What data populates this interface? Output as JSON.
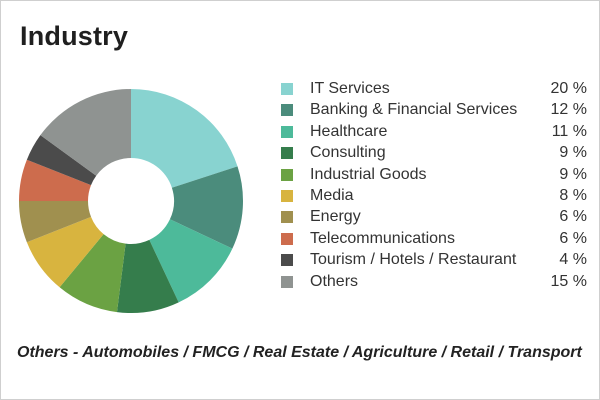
{
  "chart_data": {
    "type": "pie",
    "title": "Industry",
    "categories": [
      "IT Services",
      "Banking & Financial Services",
      "Healthcare",
      "Consulting",
      "Industrial Goods",
      "Media",
      "Energy",
      "Telecommunications",
      "Tourism / Hotels / Restaurant",
      "Others"
    ],
    "values": [
      20,
      12,
      11,
      9,
      9,
      8,
      6,
      6,
      4,
      15
    ],
    "value_labels": [
      "20 %",
      "12 %",
      "11 %",
      "9 %",
      "9 %",
      "8 %",
      "6 %",
      "6 %",
      "4 %",
      "15 %"
    ],
    "colors": [
      "#88d3d0",
      "#4b8c7c",
      "#4dba9a",
      "#357d4c",
      "#6ba243",
      "#d8b43f",
      "#a0904f",
      "#cd6c4d",
      "#4b4b4b",
      "#8f9391"
    ],
    "legend_position": "right",
    "donut": true
  },
  "footnote": "Others - Automobiles / FMCG / Real Estate / Agriculture / Retail / Transport"
}
